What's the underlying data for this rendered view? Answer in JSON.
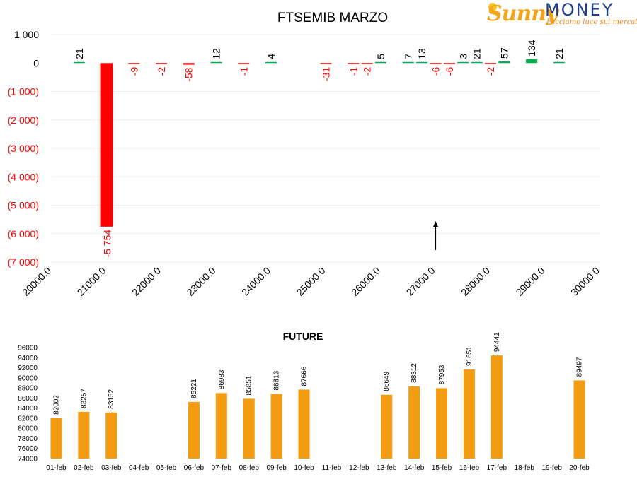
{
  "logo": {
    "brand_a": "Sunny",
    "brand_b": "MONEY",
    "tagline": "Facciamo luce sui mercati"
  },
  "colors": {
    "negative": "#ff0000",
    "positive": "#00b050",
    "future_bar": "#f39c12",
    "axis_text": "#000000",
    "neg_tick": "#ff0000"
  },
  "chart_data": [
    {
      "type": "bar",
      "title": "FTSEMIB MARZO",
      "xlabel": "",
      "ylabel": "",
      "x_ticks": [
        "20000.0",
        "21000.0",
        "22000.0",
        "23000.0",
        "24000.0",
        "25000.0",
        "26000.0",
        "27000.0",
        "28000.0",
        "29000.0",
        "30000.0"
      ],
      "y_ticks": [
        "1 000",
        "0",
        "(1 000)",
        "(2 000)",
        "(3 000)",
        "(4 000)",
        "(5 000)",
        "(6 000)",
        "(7 000)"
      ],
      "xlim": [
        20000,
        30000
      ],
      "ylim": [
        -7000,
        1000
      ],
      "grid": true,
      "points": [
        {
          "x": 20500,
          "y": 21,
          "label": "21"
        },
        {
          "x": 21000,
          "y": -5754,
          "label": "-5 754"
        },
        {
          "x": 21500,
          "y": -9,
          "label": "-9"
        },
        {
          "x": 22000,
          "y": -2,
          "label": "-2"
        },
        {
          "x": 22500,
          "y": -58,
          "label": "-58"
        },
        {
          "x": 23000,
          "y": 12,
          "label": "12"
        },
        {
          "x": 23500,
          "y": -1,
          "label": "-1"
        },
        {
          "x": 24000,
          "y": 4,
          "label": "4"
        },
        {
          "x": 25000,
          "y": -31,
          "label": "-31"
        },
        {
          "x": 25500,
          "y": -1,
          "label": "-1"
        },
        {
          "x": 25750,
          "y": -2,
          "label": "-2"
        },
        {
          "x": 26000,
          "y": 5,
          "label": "5"
        },
        {
          "x": 26500,
          "y": 7,
          "label": "7"
        },
        {
          "x": 26750,
          "y": 13,
          "label": "13"
        },
        {
          "x": 27000,
          "y": -6,
          "label": "-6"
        },
        {
          "x": 27250,
          "y": -6,
          "label": "-6"
        },
        {
          "x": 27500,
          "y": 3,
          "label": "3"
        },
        {
          "x": 27750,
          "y": 21,
          "label": "21"
        },
        {
          "x": 28000,
          "y": -2,
          "label": "-2"
        },
        {
          "x": 28250,
          "y": 57,
          "label": "57"
        },
        {
          "x": 28750,
          "y": 134,
          "label": "134"
        },
        {
          "x": 29250,
          "y": 21,
          "label": "21"
        }
      ],
      "marker": {
        "x": 27000
      }
    },
    {
      "type": "bar",
      "title": "FUTURE",
      "xlabel": "",
      "ylabel": "",
      "categories": [
        "01-feb",
        "02-feb",
        "03-feb",
        "04-feb",
        "05-feb",
        "06-feb",
        "07-feb",
        "08-feb",
        "09-feb",
        "10-feb",
        "11-feb",
        "12-feb",
        "13-feb",
        "14-feb",
        "15-feb",
        "16-feb",
        "17-feb",
        "18-feb",
        "19-feb",
        "20-feb"
      ],
      "values": [
        82002,
        83257,
        83152,
        null,
        null,
        85221,
        86983,
        85851,
        86813,
        87666,
        null,
        null,
        86649,
        88312,
        87953,
        91651,
        94441,
        null,
        null,
        89497
      ],
      "y_ticks": [
        "74000",
        "76000",
        "78000",
        "80000",
        "82000",
        "84000",
        "86000",
        "88000",
        "90000",
        "92000",
        "94000",
        "96000"
      ],
      "ylim": [
        74000,
        96000
      ]
    }
  ]
}
